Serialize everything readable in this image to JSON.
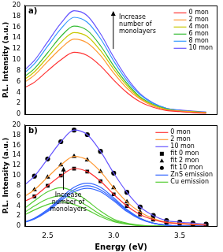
{
  "chart_data": [
    {
      "type": "line",
      "title": "a)",
      "y_label": "P.L. Intensity (a.u.)",
      "x": [
        2.3,
        2.4,
        2.5,
        2.6,
        2.7,
        2.8,
        2.9,
        3.0,
        3.1,
        3.2,
        3.3,
        3.4,
        3.5,
        3.6,
        3.7
      ],
      "series": [
        {
          "name": "0 mon",
          "color": "#ff3333",
          "values": [
            4.6,
            5.9,
            8.0,
            10.0,
            11.4,
            10.8,
            8.9,
            6.3,
            4.0,
            2.3,
            1.3,
            0.7,
            0.5,
            0.3,
            0.2
          ]
        },
        {
          "name": "2 mon",
          "color": "#ff9933",
          "values": [
            5.5,
            7.2,
            9.7,
            12.1,
            13.8,
            13.1,
            10.8,
            7.6,
            4.8,
            2.8,
            1.5,
            0.8,
            0.6,
            0.4,
            0.3
          ]
        },
        {
          "name": "4 mon",
          "color": "#c8c800",
          "values": [
            6.0,
            7.8,
            10.5,
            13.2,
            15.0,
            14.3,
            11.7,
            8.3,
            5.3,
            3.0,
            1.7,
            0.9,
            0.6,
            0.5,
            0.3
          ]
        },
        {
          "name": "6 mon",
          "color": "#33bb33",
          "values": [
            6.5,
            8.4,
            11.3,
            14.3,
            16.2,
            15.4,
            12.6,
            8.9,
            5.7,
            3.2,
            1.8,
            1.0,
            0.6,
            0.5,
            0.3
          ]
        },
        {
          "name": "8 mon",
          "color": "#3399ff",
          "values": [
            7.1,
            9.3,
            12.5,
            15.7,
            17.8,
            16.9,
            13.9,
            9.8,
            6.2,
            3.6,
            2.0,
            1.1,
            0.7,
            0.5,
            0.4
          ]
        },
        {
          "name": "10 mon",
          "color": "#6655ff",
          "values": [
            7.6,
            9.9,
            13.3,
            16.7,
            19.0,
            18.1,
            14.8,
            10.5,
            6.7,
            3.8,
            2.1,
            1.1,
            0.8,
            0.6,
            0.4
          ]
        }
      ],
      "xlim": [
        2.33,
        3.78
      ],
      "ylim": [
        0,
        20
      ],
      "xticks": [
        2.5,
        {
          "value": 3,
          "label": "3.0"
        },
        3.5
      ],
      "yticks": [
        0,
        2,
        4,
        6,
        8,
        10,
        12,
        14,
        16,
        18,
        20
      ],
      "grid": false,
      "legend": "top-right",
      "tick_labels": "y",
      "annotations": [
        "Increase number of monolayers"
      ]
    },
    {
      "type": "line",
      "title": "b)",
      "x_label": "Energy (eV)",
      "y_label": "P.L. Intensity (a.u.)",
      "x": [
        2.3,
        2.4,
        2.5,
        2.6,
        2.7,
        2.8,
        2.9,
        3.0,
        3.1,
        3.2,
        3.3,
        3.4,
        3.5,
        3.6,
        3.7
      ],
      "series": [
        {
          "name": "0 mon",
          "color": "#ff3333",
          "values": [
            4.6,
            5.9,
            8.0,
            10.0,
            11.4,
            10.8,
            8.9,
            6.3,
            4.0,
            2.3,
            1.3,
            0.7,
            0.5,
            0.3,
            0.2
          ]
        },
        {
          "name": "2 mon",
          "color": "#ff9933",
          "values": [
            5.5,
            7.2,
            9.7,
            12.1,
            13.8,
            13.1,
            10.8,
            7.6,
            4.8,
            2.8,
            1.5,
            0.8,
            0.6,
            0.4,
            0.3
          ]
        },
        {
          "name": "10 mon",
          "color": "#6655ff",
          "values": [
            7.6,
            9.9,
            13.3,
            16.7,
            19.0,
            18.1,
            14.8,
            10.5,
            6.7,
            3.8,
            2.1,
            1.1,
            0.8,
            0.6,
            0.4
          ]
        },
        {
          "name": "fit 0 mon",
          "color": "#000000",
          "marker": "square",
          "line_style": "none",
          "values": [
            4.6,
            5.9,
            8.0,
            10.0,
            11.4,
            10.8,
            8.9,
            6.3,
            4.0,
            2.3,
            1.3,
            0.7,
            0.5,
            0.3,
            0.2
          ]
        },
        {
          "name": "fit 2 mon",
          "color": "#000000",
          "marker": "triangle",
          "line_style": "none",
          "values": [
            5.5,
            7.2,
            9.7,
            12.1,
            13.8,
            13.1,
            10.8,
            7.6,
            4.8,
            2.8,
            1.5,
            0.8,
            0.6,
            0.4,
            0.3
          ]
        },
        {
          "name": "fit 10 mon",
          "color": "#000000",
          "marker": "circle",
          "line_style": "none",
          "values": [
            7.6,
            9.9,
            13.3,
            16.7,
            19.0,
            18.1,
            14.8,
            10.5,
            6.7,
            3.8,
            2.1,
            1.1,
            0.8,
            0.6,
            0.4
          ]
        },
        {
          "name": "ZnS emission",
          "color": "#3366ff",
          "values": [
            0.6,
            1.4,
            2.9,
            5.0,
            6.8,
            7.5,
            6.8,
            5.0,
            2.9,
            1.4,
            0.6,
            0.2,
            0,
            0,
            0
          ]
        },
        {
          "name": "ZnS emission",
          "color": "#3366ff",
          "values": [
            0.6,
            1.5,
            3.1,
            5.3,
            7.2,
            8.0,
            7.2,
            5.3,
            3.1,
            1.5,
            0.6,
            0.2,
            0,
            0,
            0
          ]
        },
        {
          "name": "ZnS emission",
          "color": "#3366ff",
          "values": [
            0.6,
            1.6,
            3.3,
            5.6,
            7.7,
            8.5,
            7.7,
            5.6,
            3.3,
            1.6,
            0.6,
            0.2,
            0.1,
            0,
            0
          ]
        },
        {
          "name": "Cu emission",
          "color": "#55cc33",
          "values": [
            1.9,
            3.2,
            4.3,
            4.8,
            4.3,
            3.2,
            1.9,
            0.9,
            0.4,
            0.1,
            0,
            0,
            0,
            0,
            0
          ]
        },
        {
          "name": "Cu emission",
          "color": "#55cc33",
          "values": [
            2.3,
            4.0,
            5.4,
            6.0,
            5.4,
            4.0,
            2.3,
            1.1,
            0.5,
            0.1,
            0,
            0,
            0,
            0,
            0
          ]
        },
        {
          "name": "Cu emission",
          "color": "#55cc33",
          "values": [
            3.0,
            5.0,
            6.8,
            7.6,
            6.8,
            5.0,
            3.0,
            1.4,
            0.6,
            0.2,
            0,
            0,
            0,
            0,
            0
          ]
        }
      ],
      "xlim": [
        2.33,
        3.78
      ],
      "ylim": [
        0,
        20
      ],
      "xticks": [
        2.5,
        {
          "value": 3,
          "label": "3.0"
        },
        3.5
      ],
      "yticks": [
        0,
        2,
        4,
        6,
        8,
        10,
        12,
        14,
        16,
        18,
        20
      ],
      "grid": false,
      "legend": "top-right",
      "annotations": [
        "Increase number of monolayers"
      ]
    }
  ]
}
